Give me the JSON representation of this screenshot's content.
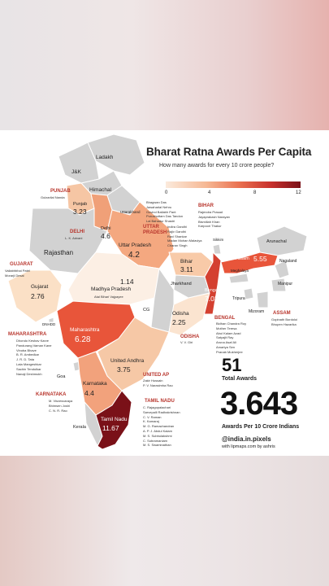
{
  "title": "Bharat Ratna Awards Per Capita",
  "subtitle": "How many awards for every 10 crore people?",
  "legend": {
    "min": 0,
    "max": 12,
    "ticks": [
      "0",
      "4",
      "8",
      "12"
    ]
  },
  "total_awards": {
    "value": "51",
    "label": "Total Awards"
  },
  "per_capita": {
    "value": "3.643",
    "label": "Awards Per 10 Crore Indians"
  },
  "credit": {
    "handle": "@india.in.pixels",
    "tool": "with lipmaps.com by ashris"
  },
  "colors": {
    "accent": "#b8352c",
    "nodata": "#d2d2d2",
    "low": "#fbeadc",
    "high": "#7a1118"
  },
  "regions": [
    {
      "name": "Ladakh",
      "value": ""
    },
    {
      "name": "J&K",
      "value": ""
    },
    {
      "name": "Himachal",
      "value": ""
    },
    {
      "name": "Punjab",
      "value": "3.23"
    },
    {
      "name": "Uttarakhand",
      "value": ""
    },
    {
      "name": "Delhi",
      "value": "4.6"
    },
    {
      "name": "Rajasthan",
      "value": ""
    },
    {
      "name": "Uttar Pradesh",
      "value": "4.2"
    },
    {
      "name": "Bihar",
      "value": "3.11"
    },
    {
      "name": "Gujarat",
      "value": "2.76"
    },
    {
      "name": "Madhya Pradesh",
      "value": "1.14"
    },
    {
      "name": "Jharkhand",
      "value": ""
    },
    {
      "name": "Bengal",
      "value": "7.03"
    },
    {
      "name": "Assam",
      "value": "5.55"
    },
    {
      "name": "Maharashtra",
      "value": "6.28"
    },
    {
      "name": "Odisha",
      "value": "2.25"
    },
    {
      "name": "United Andhra",
      "value": "3.75"
    },
    {
      "name": "Karnataka",
      "value": "4.4"
    },
    {
      "name": "Tamil Nadu",
      "value": "11.67"
    },
    {
      "name": "Kerala",
      "value": ""
    },
    {
      "name": "Goa",
      "value": ""
    },
    {
      "name": "CG",
      "value": ""
    },
    {
      "name": "Arunachal",
      "value": ""
    },
    {
      "name": "Nagaland",
      "value": ""
    },
    {
      "name": "Meghalaya",
      "value": ""
    },
    {
      "name": "Manipur",
      "value": ""
    },
    {
      "name": "Tripura",
      "value": ""
    },
    {
      "name": "Mizoram",
      "value": ""
    },
    {
      "name": "Sikkim",
      "value": ""
    },
    {
      "name": "DNHDD",
      "value": ""
    }
  ],
  "awardees": {
    "punjab": {
      "state": "PUNJAB",
      "names": [
        "Gulzarilal Nanda"
      ]
    },
    "delhi": {
      "state": "DELHI",
      "names": [
        "L. K. Advani"
      ]
    },
    "gujarat": {
      "state": "GUJARAT",
      "names": [
        "Vallabhbhai Patel",
        "Morarji Desai"
      ]
    },
    "maharashtra": {
      "state": "MAHARASHTRA",
      "names": [
        "Dhondo Keshav Karve",
        "Pandurang Vaman Kane",
        "Vinoba Bhave",
        "B. R. Ambedkar",
        "J. R. D. Tata",
        "Lata Mangeshkar",
        "Sachin Tendulkar",
        "Nanaji Deshmukh"
      ]
    },
    "karnataka": {
      "state": "KARNATAKA",
      "names": [
        "M. Visvesvaraya",
        "Bhimsen Joshi",
        "C. N. R. Rao"
      ]
    },
    "up": {
      "state": "UTTAR PRADESH",
      "names": [
        "Indira Gandhi",
        "Rajiv Gandhi",
        "Ravi Shankar",
        "Madan Mohan Malaviya",
        "Charan Singh"
      ]
    },
    "up_top": {
      "names": [
        "Bhagwan Das",
        "Jawaharlal Nehru",
        "Govind Ballabh Pant",
        "Purushottam Das Tandon",
        "Lal Bahadur Shastri"
      ]
    },
    "bihar": {
      "state": "BIHAR",
      "names": [
        "Rajendra Prasad",
        "Jayaprakash Narayan",
        "Bismillah Khan",
        "Karpoori Thakur"
      ]
    },
    "mp": {
      "names": [
        "Atal Bihari Vajpayee"
      ]
    },
    "bengal": {
      "state": "BENGAL",
      "names": [
        "Bidhan Chandra Roy",
        "Mother Teresa",
        "Abul Kalam Azad",
        "Satyajit Ray",
        "Aruna Asaf Ali",
        "Amartya Sen",
        "Pranab Mukherjee"
      ]
    },
    "assam": {
      "state": "ASSAM",
      "names": [
        "Gopinath Bordoloi",
        "Bhupen Hazarika"
      ]
    },
    "odisha": {
      "state": "ODISHA",
      "names": [
        "V. V. Giri"
      ]
    },
    "united_ap": {
      "state": "UNITED AP",
      "names": [
        "Zakir Hussain",
        "P. V. Narasimha Rao"
      ]
    },
    "tamil_nadu": {
      "state": "TAMIL NADU",
      "names": [
        "C. Rajagopalachari",
        "Sarvepalli Radhakrishnan",
        "C. V. Raman",
        "K. Kamaraj",
        "M. G. Ramachandran",
        "A. P. J. Abdul Kalam",
        "M. S. Subbulakshmi",
        "C. Subramaniam",
        "M. S. Swaminathan"
      ]
    }
  }
}
